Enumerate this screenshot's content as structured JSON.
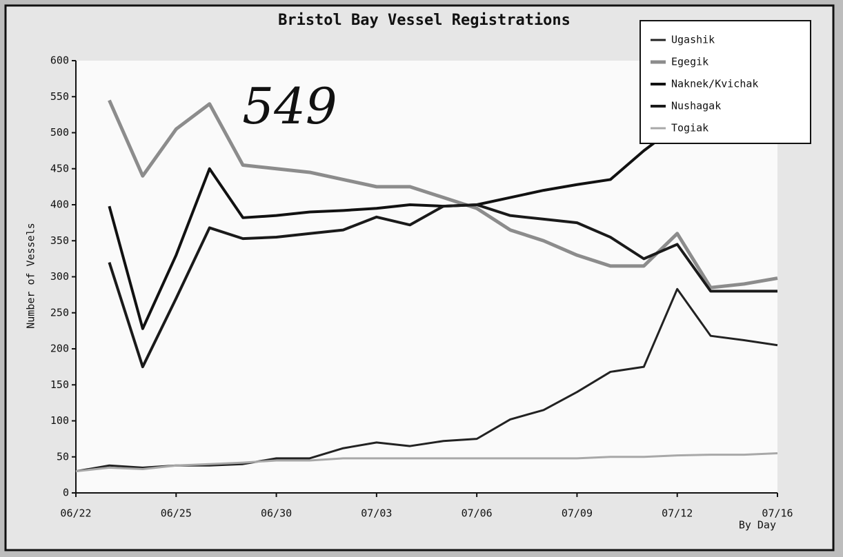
{
  "chart_data": {
    "type": "line",
    "title": "Bristol Bay Vessel Registrations",
    "ylabel": "Number of Vessels",
    "xlabel": "By Day",
    "annotation": "549",
    "x": [
      0,
      1,
      2,
      3,
      4,
      5,
      6,
      7,
      8,
      9,
      10,
      11,
      12,
      13,
      14,
      15,
      16,
      17,
      18,
      19,
      20,
      21
    ],
    "xlim": [
      0,
      21
    ],
    "xticks": [
      {
        "value": 0,
        "label": "06/22"
      },
      {
        "value": 3,
        "label": "06/25"
      },
      {
        "value": 6,
        "label": "06/30"
      },
      {
        "value": 9,
        "label": "07/03"
      },
      {
        "value": 12,
        "label": "07/06"
      },
      {
        "value": 15,
        "label": "07/09"
      },
      {
        "value": 18,
        "label": "07/12"
      },
      {
        "value": 21,
        "label": "07/16"
      }
    ],
    "ylim": [
      0,
      600
    ],
    "yticks": [
      0,
      50,
      100,
      150,
      200,
      250,
      300,
      350,
      400,
      450,
      500,
      550,
      600
    ],
    "legend": "upper right",
    "series": [
      {
        "name": "Ugashik",
        "color": "#222222",
        "width": 3,
        "values": [
          30,
          38,
          35,
          38,
          38,
          40,
          48,
          48,
          62,
          70,
          65,
          72,
          75,
          102,
          115,
          140,
          168,
          175,
          283,
          218,
          212,
          205
        ]
      },
      {
        "name": "Egegik",
        "color": "#8c8c8c",
        "width": 5,
        "values": [
          null,
          545,
          440,
          505,
          540,
          455,
          450,
          445,
          435,
          425,
          425,
          410,
          395,
          365,
          350,
          330,
          315,
          315,
          360,
          285,
          290,
          298
        ]
      },
      {
        "name": "Naknek/Kvichak",
        "color": "#111111",
        "width": 4,
        "values": [
          null,
          398,
          228,
          330,
          450,
          382,
          385,
          390,
          392,
          395,
          400,
          398,
          400,
          410,
          420,
          428,
          435,
          475,
          510,
          null,
          null,
          null
        ]
      },
      {
        "name": "Nushagak",
        "color": "#1a1a1a",
        "width": 4,
        "values": [
          null,
          320,
          175,
          270,
          368,
          353,
          355,
          360,
          365,
          383,
          372,
          398,
          400,
          385,
          380,
          375,
          355,
          325,
          345,
          280,
          280,
          280
        ]
      },
      {
        "name": "Togiak",
        "color": "#a8a8a8",
        "width": 3,
        "values": [
          30,
          35,
          33,
          38,
          40,
          42,
          45,
          45,
          48,
          48,
          48,
          48,
          48,
          48,
          48,
          48,
          50,
          50,
          52,
          53,
          53,
          55
        ]
      }
    ]
  }
}
